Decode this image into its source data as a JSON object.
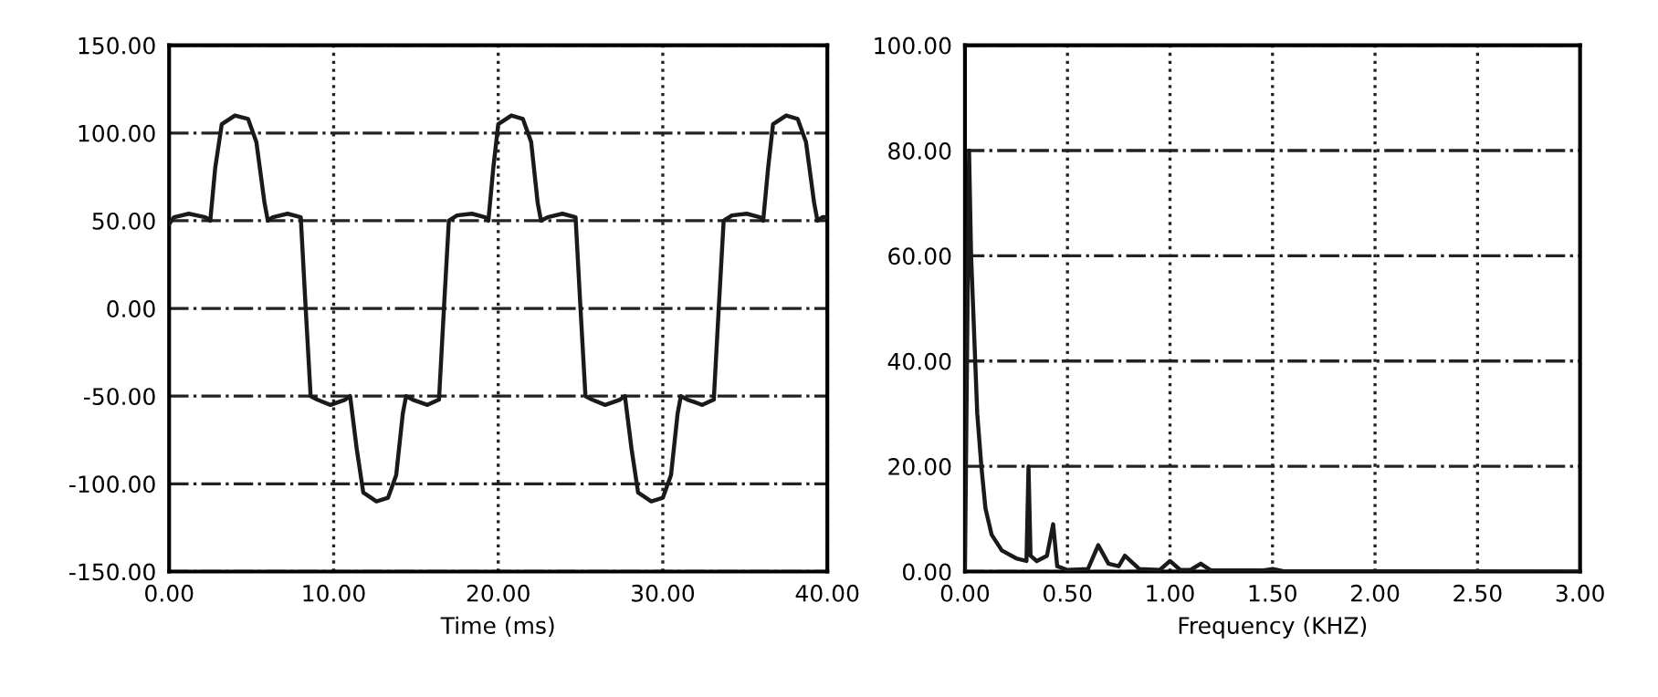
{
  "chart_data": [
    {
      "type": "line",
      "xlabel": "Time (ms)",
      "xlim": [
        0,
        40
      ],
      "xticks": [
        {
          "value": 0,
          "label": "0.00"
        },
        {
          "value": 10,
          "label": "10.00"
        },
        {
          "value": 20,
          "label": "20.00"
        },
        {
          "value": 30,
          "label": "30.00"
        },
        {
          "value": 40,
          "label": "40.00"
        }
      ],
      "ylim": [
        -150,
        150
      ],
      "yticks": [
        {
          "value": -150,
          "label": "-150.00"
        },
        {
          "value": -100,
          "label": "-100.00"
        },
        {
          "value": -50,
          "label": "-50.00"
        },
        {
          "value": 0,
          "label": "0.00"
        },
        {
          "value": 50,
          "label": "50.00"
        },
        {
          "value": 100,
          "label": "100.00"
        },
        {
          "value": 150,
          "label": "150.00"
        }
      ],
      "grid": true,
      "marker": "none",
      "line_style": "solid",
      "series": [
        {
          "color": "#1a1a1a",
          "x": [
            0,
            0.3,
            1.2,
            2.2,
            2.5,
            2.8,
            3.2,
            4.0,
            4.8,
            5.3,
            5.8,
            6.0,
            6.3,
            7.2,
            8.0,
            8.3,
            8.6,
            9.0,
            9.8,
            10.7,
            11.0,
            11.4,
            11.8,
            12.6,
            13.3,
            13.8,
            14.2,
            14.4,
            14.8,
            15.7,
            16.4,
            16.7,
            17.0,
            17.5,
            18.4,
            19.2,
            19.4,
            19.7,
            20.0,
            20.8,
            21.5,
            22.0,
            22.4,
            22.6,
            23.0,
            23.9,
            24.7,
            25.0,
            25.3,
            25.7,
            26.5,
            27.4,
            27.7,
            28.1,
            28.5,
            29.3,
            30.0,
            30.5,
            30.9,
            31.1,
            31.5,
            32.4,
            33.1,
            33.4,
            33.7,
            34.2,
            35.1,
            35.9,
            36.1,
            36.4,
            36.7,
            37.5,
            38.2,
            38.7,
            39.2,
            39.4,
            39.7,
            40.0
          ],
          "values": [
            48,
            52,
            54,
            52,
            50,
            80,
            105,
            110,
            108,
            95,
            60,
            50,
            52,
            54,
            52,
            0,
            -50,
            -52,
            -55,
            -52,
            -50,
            -80,
            -105,
            -110,
            -108,
            -95,
            -60,
            -50,
            -52,
            -55,
            -52,
            0,
            50,
            53,
            54,
            52,
            50,
            80,
            105,
            110,
            108,
            95,
            60,
            50,
            52,
            54,
            52,
            0,
            -50,
            -52,
            -55,
            -52,
            -50,
            -80,
            -105,
            -110,
            -108,
            -95,
            -60,
            -50,
            -52,
            -55,
            -52,
            0,
            50,
            53,
            54,
            52,
            50,
            80,
            105,
            110,
            108,
            95,
            60,
            50,
            52,
            52
          ]
        }
      ]
    },
    {
      "type": "line",
      "xlabel": "Frequency (KHZ)",
      "xlim": [
        0,
        3
      ],
      "xticks": [
        {
          "value": 0,
          "label": "0.00"
        },
        {
          "value": 0.5,
          "label": "0.50"
        },
        {
          "value": 1,
          "label": "1.00"
        },
        {
          "value": 1.5,
          "label": "1.50"
        },
        {
          "value": 2,
          "label": "2.00"
        },
        {
          "value": 2.5,
          "label": "2.50"
        },
        {
          "value": 3,
          "label": "3.00"
        }
      ],
      "ylim": [
        0,
        100
      ],
      "yticks": [
        {
          "value": 0,
          "label": "0.00"
        },
        {
          "value": 20,
          "label": "20.00"
        },
        {
          "value": 40,
          "label": "40.00"
        },
        {
          "value": 60,
          "label": "60.00"
        },
        {
          "value": 80,
          "label": "80.00"
        },
        {
          "value": 100,
          "label": "100.00"
        }
      ],
      "grid": true,
      "marker": "none",
      "line_style": "solid",
      "series": [
        {
          "color": "#1a1a1a",
          "x": [
            0,
            0.01,
            0.02,
            0.03,
            0.04,
            0.05,
            0.06,
            0.08,
            0.1,
            0.13,
            0.18,
            0.25,
            0.3,
            0.31,
            0.32,
            0.35,
            0.4,
            0.43,
            0.45,
            0.5,
            0.6,
            0.65,
            0.7,
            0.75,
            0.78,
            0.85,
            0.95,
            1.0,
            1.05,
            1.1,
            1.15,
            1.2,
            1.45,
            1.5,
            1.55,
            3.0
          ],
          "values": [
            0,
            40,
            80,
            60,
            50,
            40,
            30,
            20,
            12,
            7,
            4,
            2.5,
            2,
            20,
            3,
            2,
            3,
            9,
            1,
            0.3,
            0.5,
            5,
            1.5,
            1,
            3,
            0.5,
            0.3,
            2,
            0.3,
            0.3,
            1.5,
            0.2,
            0.2,
            0.5,
            0.1,
            0
          ]
        }
      ]
    }
  ]
}
